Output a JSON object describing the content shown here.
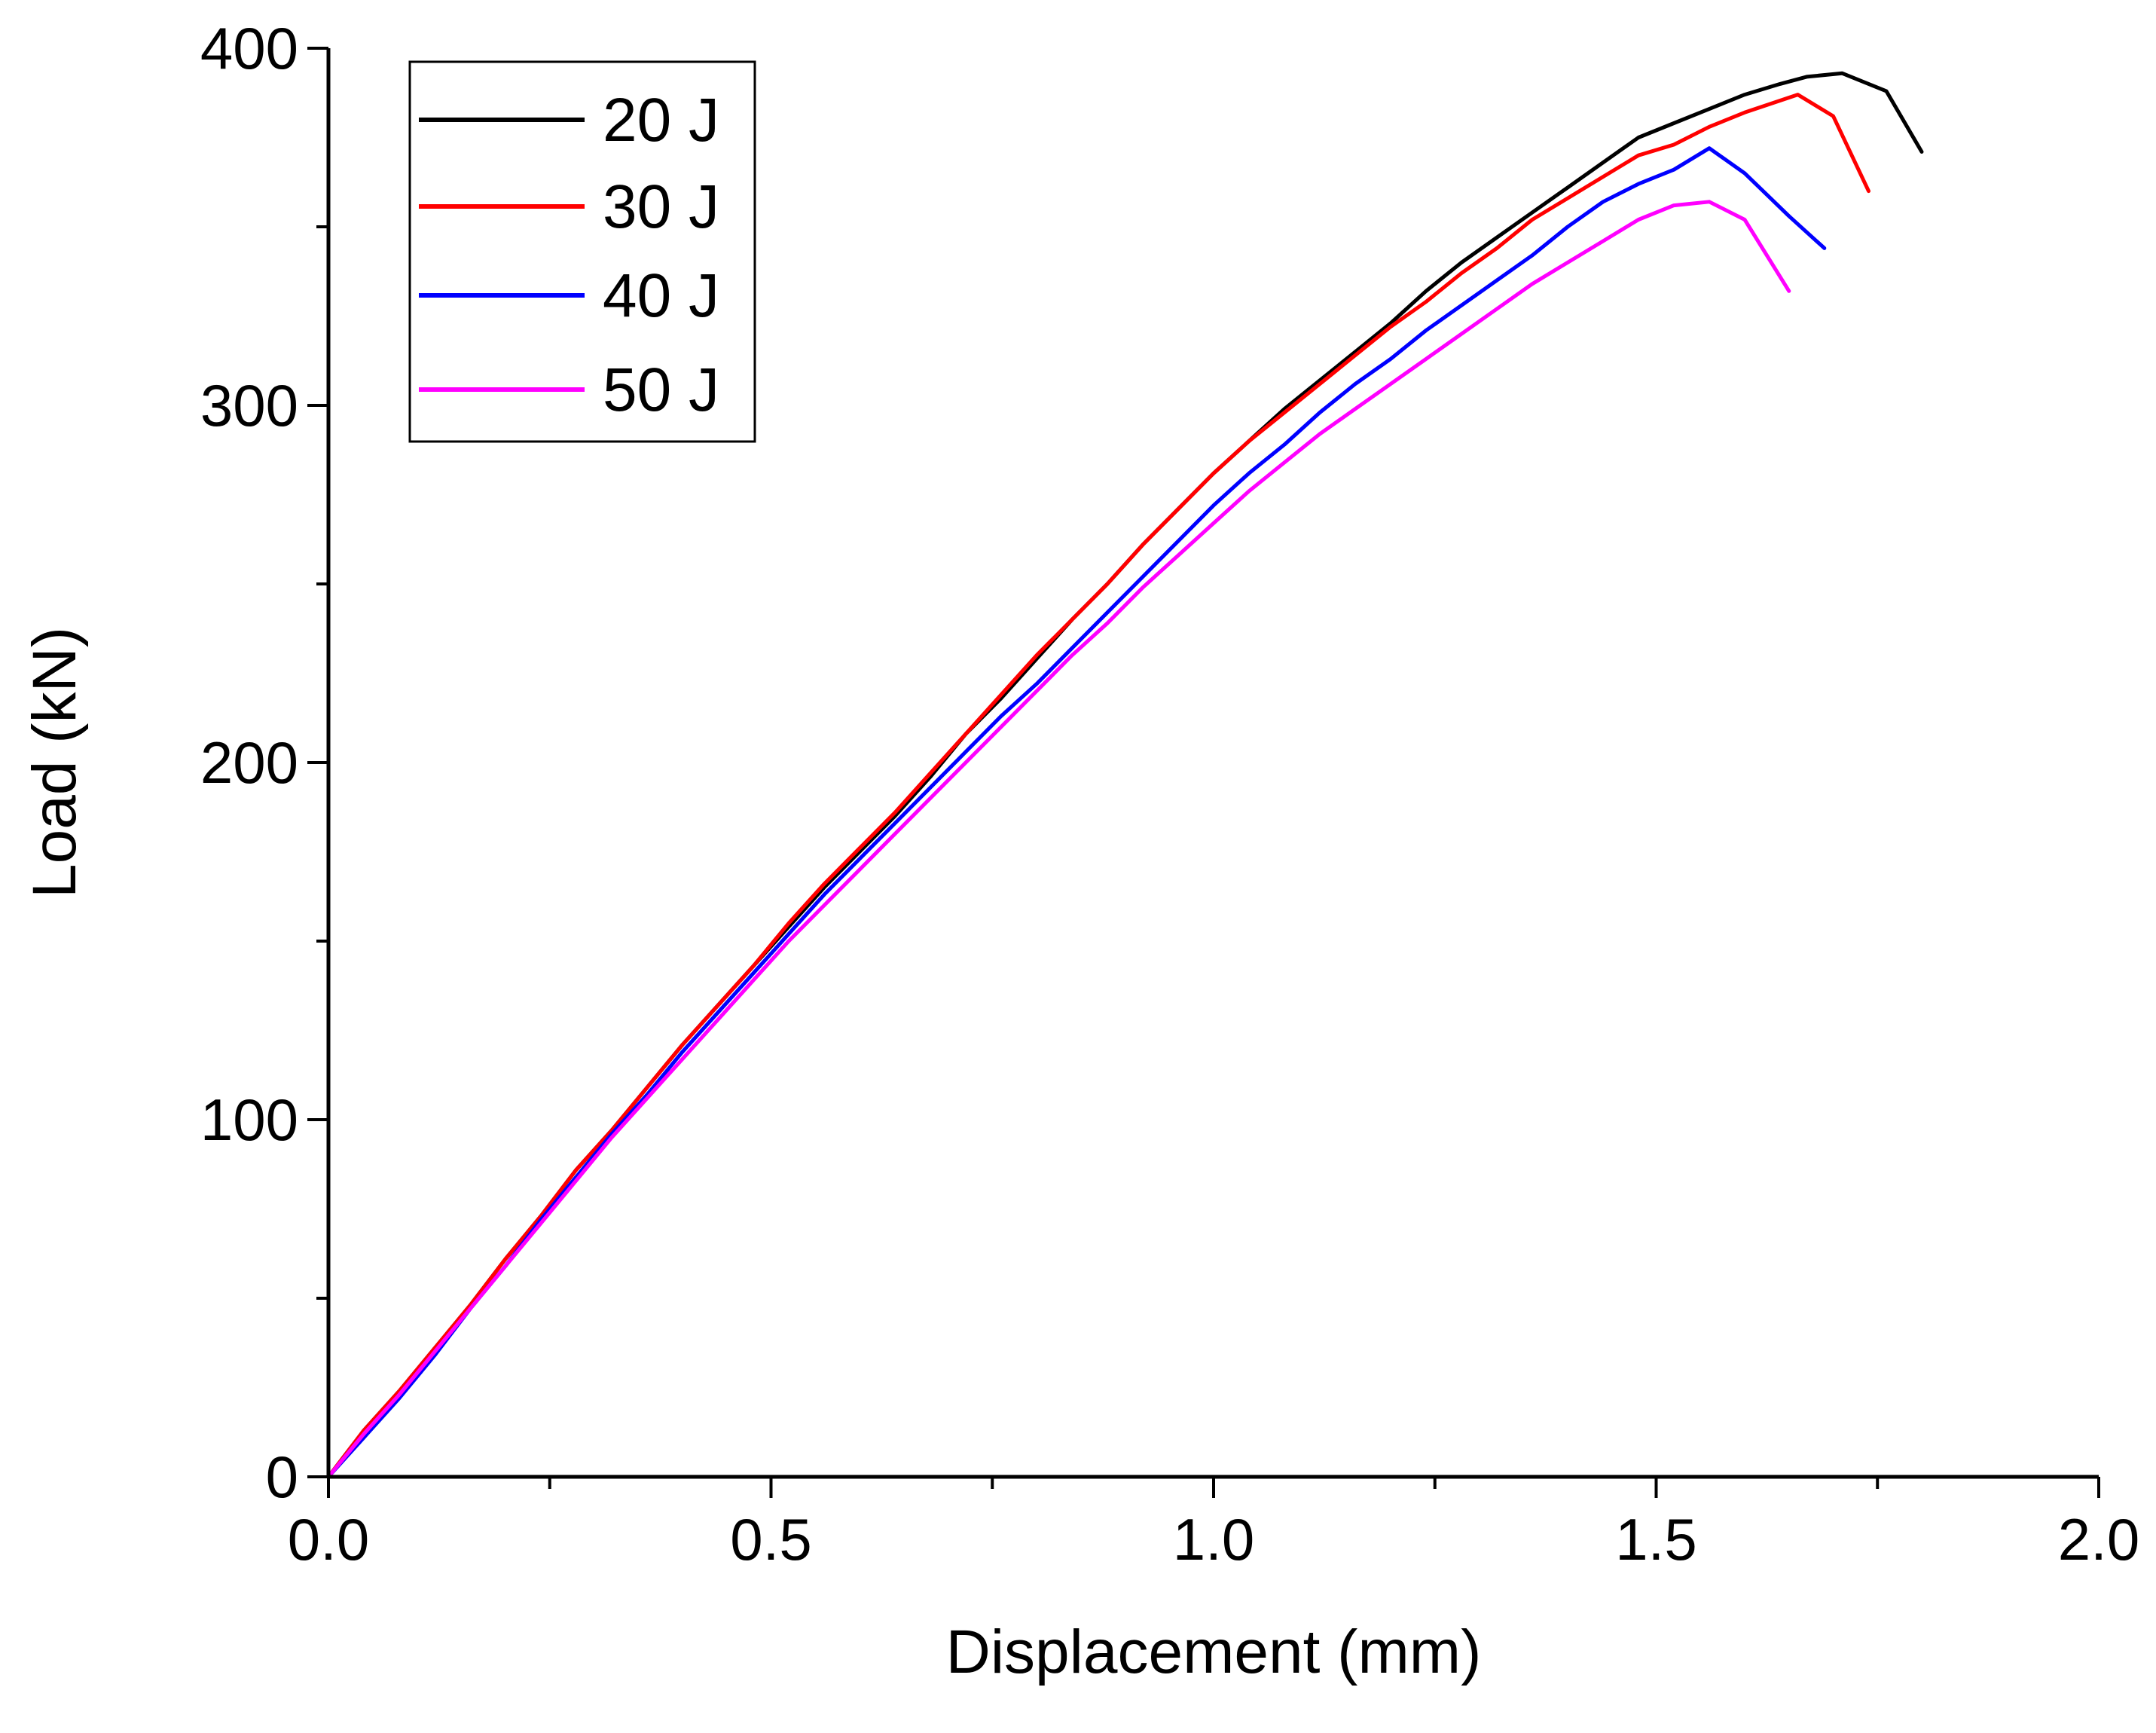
{
  "chart_data": {
    "type": "line",
    "title": "",
    "xlabel": "Displacement (mm)",
    "ylabel": "Load (kN)",
    "xlim": [
      0,
      2.0
    ],
    "ylim": [
      0,
      400
    ],
    "xticks": [
      0.0,
      0.5,
      1.0,
      1.5,
      2.0
    ],
    "xtick_labels": [
      "0.0",
      "0.5",
      "1.0",
      "1.5",
      "2.0"
    ],
    "yticks": [
      0,
      100,
      200,
      300,
      400
    ],
    "ytick_labels": [
      "0",
      "100",
      "200",
      "300",
      "400"
    ],
    "grid": false,
    "legend_position": "top-left",
    "series": [
      {
        "name": "20 J",
        "color": "#000000",
        "x": [
          0,
          0.04,
          0.08,
          0.12,
          0.16,
          0.2,
          0.24,
          0.28,
          0.32,
          0.36,
          0.4,
          0.44,
          0.48,
          0.52,
          0.56,
          0.6,
          0.64,
          0.68,
          0.72,
          0.76,
          0.8,
          0.84,
          0.88,
          0.92,
          0.96,
          1.0,
          1.04,
          1.08,
          1.12,
          1.16,
          1.2,
          1.24,
          1.28,
          1.32,
          1.36,
          1.4,
          1.44,
          1.48,
          1.52,
          1.56,
          1.6,
          1.64,
          1.67,
          1.71,
          1.76,
          1.8
        ],
        "y": [
          0,
          13,
          24,
          36,
          48,
          61,
          73,
          86,
          97,
          109,
          121,
          132,
          143,
          154,
          165,
          175,
          185,
          196,
          208,
          218,
          229,
          240,
          250,
          261,
          271,
          281,
          290,
          299,
          307,
          315,
          323,
          332,
          340,
          347,
          354,
          361,
          368,
          375,
          379,
          383,
          387,
          390,
          392,
          393,
          388,
          371
        ]
      },
      {
        "name": "30 J",
        "color": "#ff0000",
        "x": [
          0,
          0.04,
          0.08,
          0.12,
          0.16,
          0.2,
          0.24,
          0.28,
          0.32,
          0.36,
          0.4,
          0.44,
          0.48,
          0.52,
          0.56,
          0.6,
          0.64,
          0.68,
          0.72,
          0.76,
          0.8,
          0.84,
          0.88,
          0.92,
          0.96,
          1.0,
          1.04,
          1.08,
          1.12,
          1.16,
          1.2,
          1.24,
          1.28,
          1.32,
          1.36,
          1.4,
          1.44,
          1.48,
          1.52,
          1.56,
          1.6,
          1.66,
          1.7,
          1.74
        ],
        "y": [
          0,
          13,
          24,
          36,
          48,
          61,
          73,
          86,
          97,
          109,
          121,
          132,
          143,
          155,
          166,
          176,
          186,
          197,
          208,
          219,
          230,
          240,
          250,
          261,
          271,
          281,
          290,
          298,
          306,
          314,
          322,
          329,
          337,
          344,
          352,
          358,
          364,
          370,
          373,
          378,
          382,
          387,
          381,
          360
        ]
      },
      {
        "name": "40 J",
        "color": "#0000ff",
        "x": [
          0,
          0.04,
          0.08,
          0.12,
          0.16,
          0.2,
          0.24,
          0.28,
          0.32,
          0.36,
          0.4,
          0.44,
          0.48,
          0.52,
          0.56,
          0.6,
          0.64,
          0.68,
          0.72,
          0.76,
          0.8,
          0.84,
          0.88,
          0.92,
          0.96,
          1.0,
          1.04,
          1.08,
          1.12,
          1.16,
          1.2,
          1.24,
          1.28,
          1.32,
          1.36,
          1.4,
          1.44,
          1.48,
          1.52,
          1.56,
          1.6,
          1.65,
          1.69
        ],
        "y": [
          0,
          11,
          22,
          34,
          47,
          59,
          72,
          84,
          96,
          107,
          119,
          130,
          141,
          152,
          163,
          173,
          183,
          193,
          203,
          213,
          222,
          232,
          242,
          252,
          262,
          272,
          281,
          289,
          298,
          306,
          313,
          321,
          328,
          335,
          342,
          350,
          357,
          362,
          366,
          372,
          365,
          353,
          344
        ]
      },
      {
        "name": "50 J",
        "color": "#ff00ff",
        "x": [
          0,
          0.04,
          0.08,
          0.12,
          0.16,
          0.2,
          0.24,
          0.28,
          0.32,
          0.36,
          0.4,
          0.44,
          0.48,
          0.52,
          0.56,
          0.6,
          0.64,
          0.68,
          0.72,
          0.76,
          0.8,
          0.84,
          0.88,
          0.92,
          0.96,
          1.0,
          1.04,
          1.08,
          1.12,
          1.16,
          1.2,
          1.24,
          1.28,
          1.32,
          1.36,
          1.4,
          1.44,
          1.48,
          1.52,
          1.56,
          1.6,
          1.65
        ],
        "y": [
          0,
          12,
          23,
          35,
          47,
          59,
          71,
          83,
          95,
          106,
          117,
          128,
          139,
          150,
          160,
          170,
          180,
          190,
          200,
          210,
          220,
          230,
          239,
          249,
          258,
          267,
          276,
          284,
          292,
          299,
          306,
          313,
          320,
          327,
          334,
          340,
          346,
          352,
          356,
          357,
          352,
          332
        ]
      }
    ]
  }
}
